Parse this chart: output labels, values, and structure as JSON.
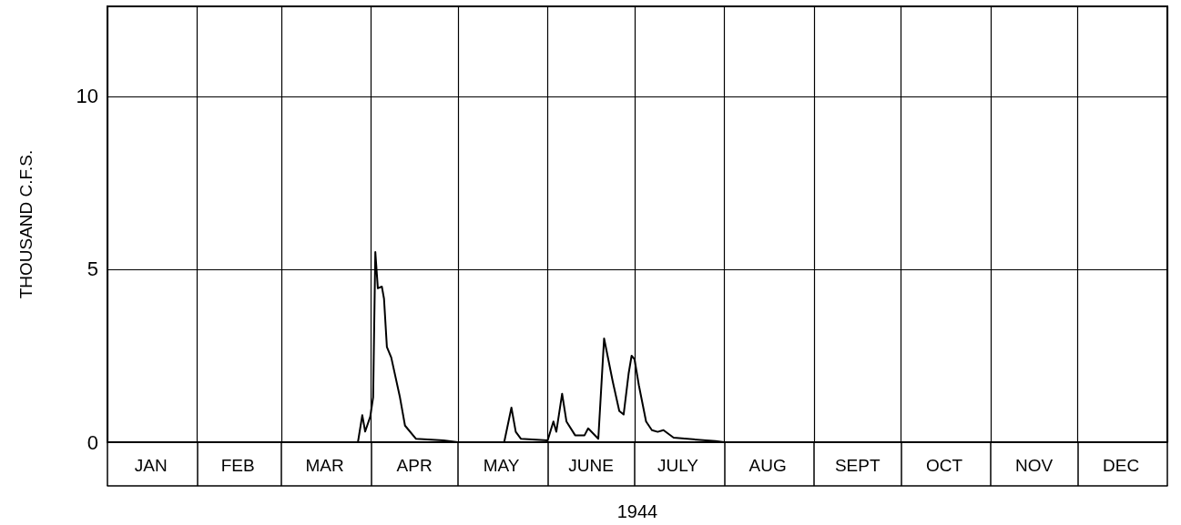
{
  "chart_data": {
    "type": "line",
    "xlabel": "1944",
    "ylabel": "THOUSAND C.F.S.",
    "x": [
      "1944-01-01",
      "1944-03-27T12:00",
      "1944-03-29",
      "1944-03-30",
      "1944-03-31T18:00",
      "1944-04-01T18:00",
      "1944-04-02T12:00",
      "1944-04-03T09:00",
      "1944-04-04T18:00",
      "1944-04-05T12:00",
      "1944-04-06T12:00",
      "1944-04-08",
      "1944-04-11",
      "1944-04-12T18:00",
      "1944-04-16T12:00",
      "1944-04-26",
      "1944-05-01",
      "1944-05-17",
      "1944-05-19T12:00",
      "1944-05-21",
      "1944-05-22T18:00",
      "1944-06-01",
      "1944-06-03",
      "1944-06-04",
      "1944-06-06",
      "1944-06-07T12:00",
      "1944-06-10T12:00",
      "1944-06-13T18:00",
      "1944-06-15",
      "1944-06-18T12:00",
      "1944-06-20T12:00",
      "1944-06-23T12:00",
      "1944-06-25T18:00",
      "1944-06-27T06:00",
      "1944-06-29",
      "1944-06-30",
      "1944-07-01",
      "1944-07-02T12:00",
      "1944-07-05",
      "1944-07-07",
      "1944-07-09",
      "1944-07-11",
      "1944-07-14T12:00",
      "1944-07-29",
      "1944-08-01",
      "1945-01-01"
    ],
    "series": [
      {
        "color": "#000000",
        "values": [
          0,
          0,
          0.78,
          0.31,
          0.74,
          1.3,
          5.5,
          4.45,
          4.5,
          4.15,
          2.75,
          2.45,
          1.3,
          0.48,
          0.1,
          0.05,
          0,
          0,
          1.0,
          0.3,
          0.1,
          0.05,
          0.6,
          0.3,
          1.4,
          0.6,
          0.2,
          0.2,
          0.4,
          0.1,
          3.0,
          1.75,
          0.9,
          0.8,
          2.0,
          2.5,
          2.4,
          1.65,
          0.6,
          0.35,
          0.3,
          0.35,
          0.13,
          0.03,
          0,
          0
        ]
      }
    ],
    "xlim": [
      "1944-01-01",
      "1945-01-01"
    ],
    "xticks": [
      {
        "value": "1944-01-01",
        "label": null
      },
      {
        "value": "1944-01-16",
        "label": "JAN"
      },
      {
        "value": "1944-02-01",
        "label": null
      },
      {
        "value": "1944-02-15",
        "label": "FEB"
      },
      {
        "value": "1944-03-01",
        "label": null
      },
      {
        "value": "1944-03-16",
        "label": "MAR"
      },
      {
        "value": "1944-04-01",
        "label": null
      },
      {
        "value": "1944-04-16",
        "label": "APR"
      },
      {
        "value": "1944-05-01",
        "label": null
      },
      {
        "value": "1944-05-16",
        "label": "MAY"
      },
      {
        "value": "1944-06-01",
        "label": null
      },
      {
        "value": "1944-06-16",
        "label": "JUNE"
      },
      {
        "value": "1944-07-01",
        "label": null
      },
      {
        "value": "1944-07-16",
        "label": "JULY"
      },
      {
        "value": "1944-08-01",
        "label": null
      },
      {
        "value": "1944-08-16",
        "label": "AUG"
      },
      {
        "value": "1944-09-01",
        "label": null
      },
      {
        "value": "1944-09-16",
        "label": "SEPT"
      },
      {
        "value": "1944-10-01",
        "label": null
      },
      {
        "value": "1944-10-16",
        "label": "OCT"
      },
      {
        "value": "1944-11-01",
        "label": null
      },
      {
        "value": "1944-11-16",
        "label": "NOV"
      },
      {
        "value": "1944-12-01",
        "label": null
      },
      {
        "value": "1944-12-16",
        "label": "DEC"
      },
      {
        "value": "1945-01-01",
        "label": null
      }
    ],
    "ylim": [
      0,
      12.6
    ],
    "yticks": [
      0,
      5,
      10
    ],
    "grid": true,
    "marker": "none",
    "line_style": "solid"
  }
}
